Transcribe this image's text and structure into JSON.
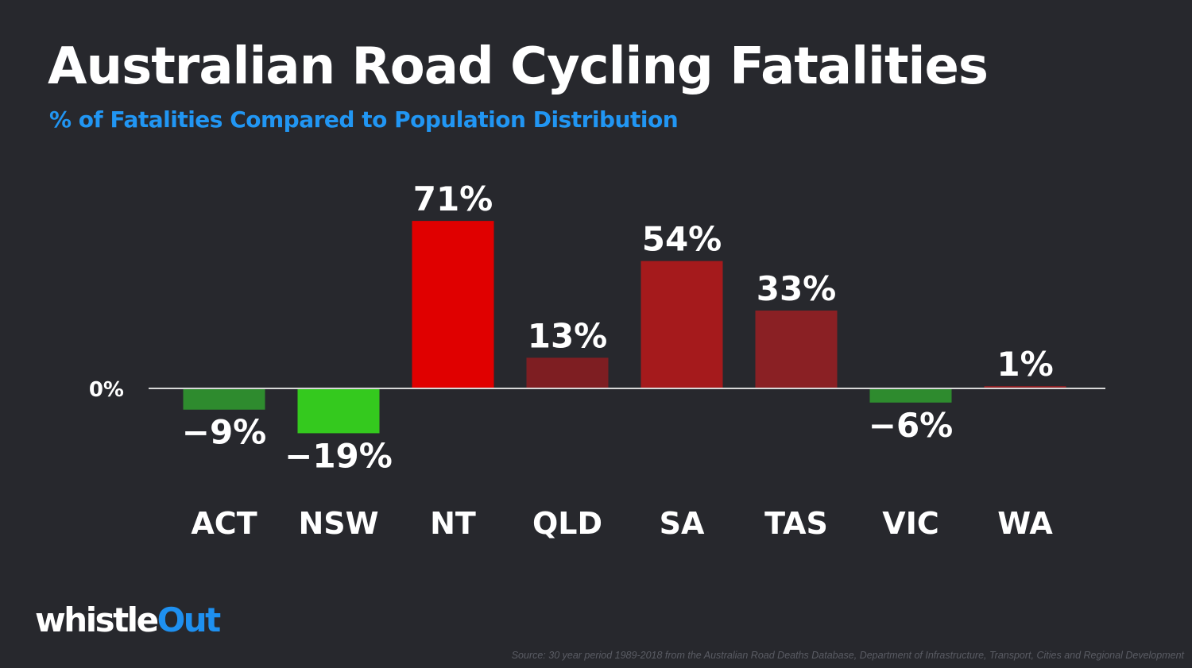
{
  "title": "Australian Road Cycling Fatalities",
  "subtitle": "% of Fatalities Compared to Population Distribution",
  "logo": {
    "part1": "whistle",
    "part2": "Out"
  },
  "source": "Source: 30 year period 1989-2018 from the Australian Road Deaths Database, Department of Infrastructure, Transport, Cities and Regional Development",
  "colors": {
    "background": "#27282d",
    "title": "#ffffff",
    "subtitle": "#2196f3",
    "axis": "#d8d8d8",
    "label": "#ffffff",
    "logo_accent": "#1e90f0"
  },
  "chart_data": {
    "type": "bar",
    "categories": [
      "ACT",
      "NSW",
      "NT",
      "QLD",
      "SA",
      "TAS",
      "VIC",
      "WA"
    ],
    "values": [
      -9,
      -19,
      71,
      13,
      54,
      33,
      -6,
      1
    ],
    "data_labels": [
      "−9%",
      "−19%",
      "71%",
      "13%",
      "54%",
      "33%",
      "−6%",
      "1%"
    ],
    "bar_colors": [
      "#2e8b2e",
      "#34c91e",
      "#e00000",
      "#7e1e22",
      "#a51a1c",
      "#8a2024",
      "#2e8b2e",
      "#8a2024"
    ],
    "zero_label": "0%",
    "ylim": [
      -19,
      71
    ],
    "grid": false,
    "legend": "none"
  }
}
